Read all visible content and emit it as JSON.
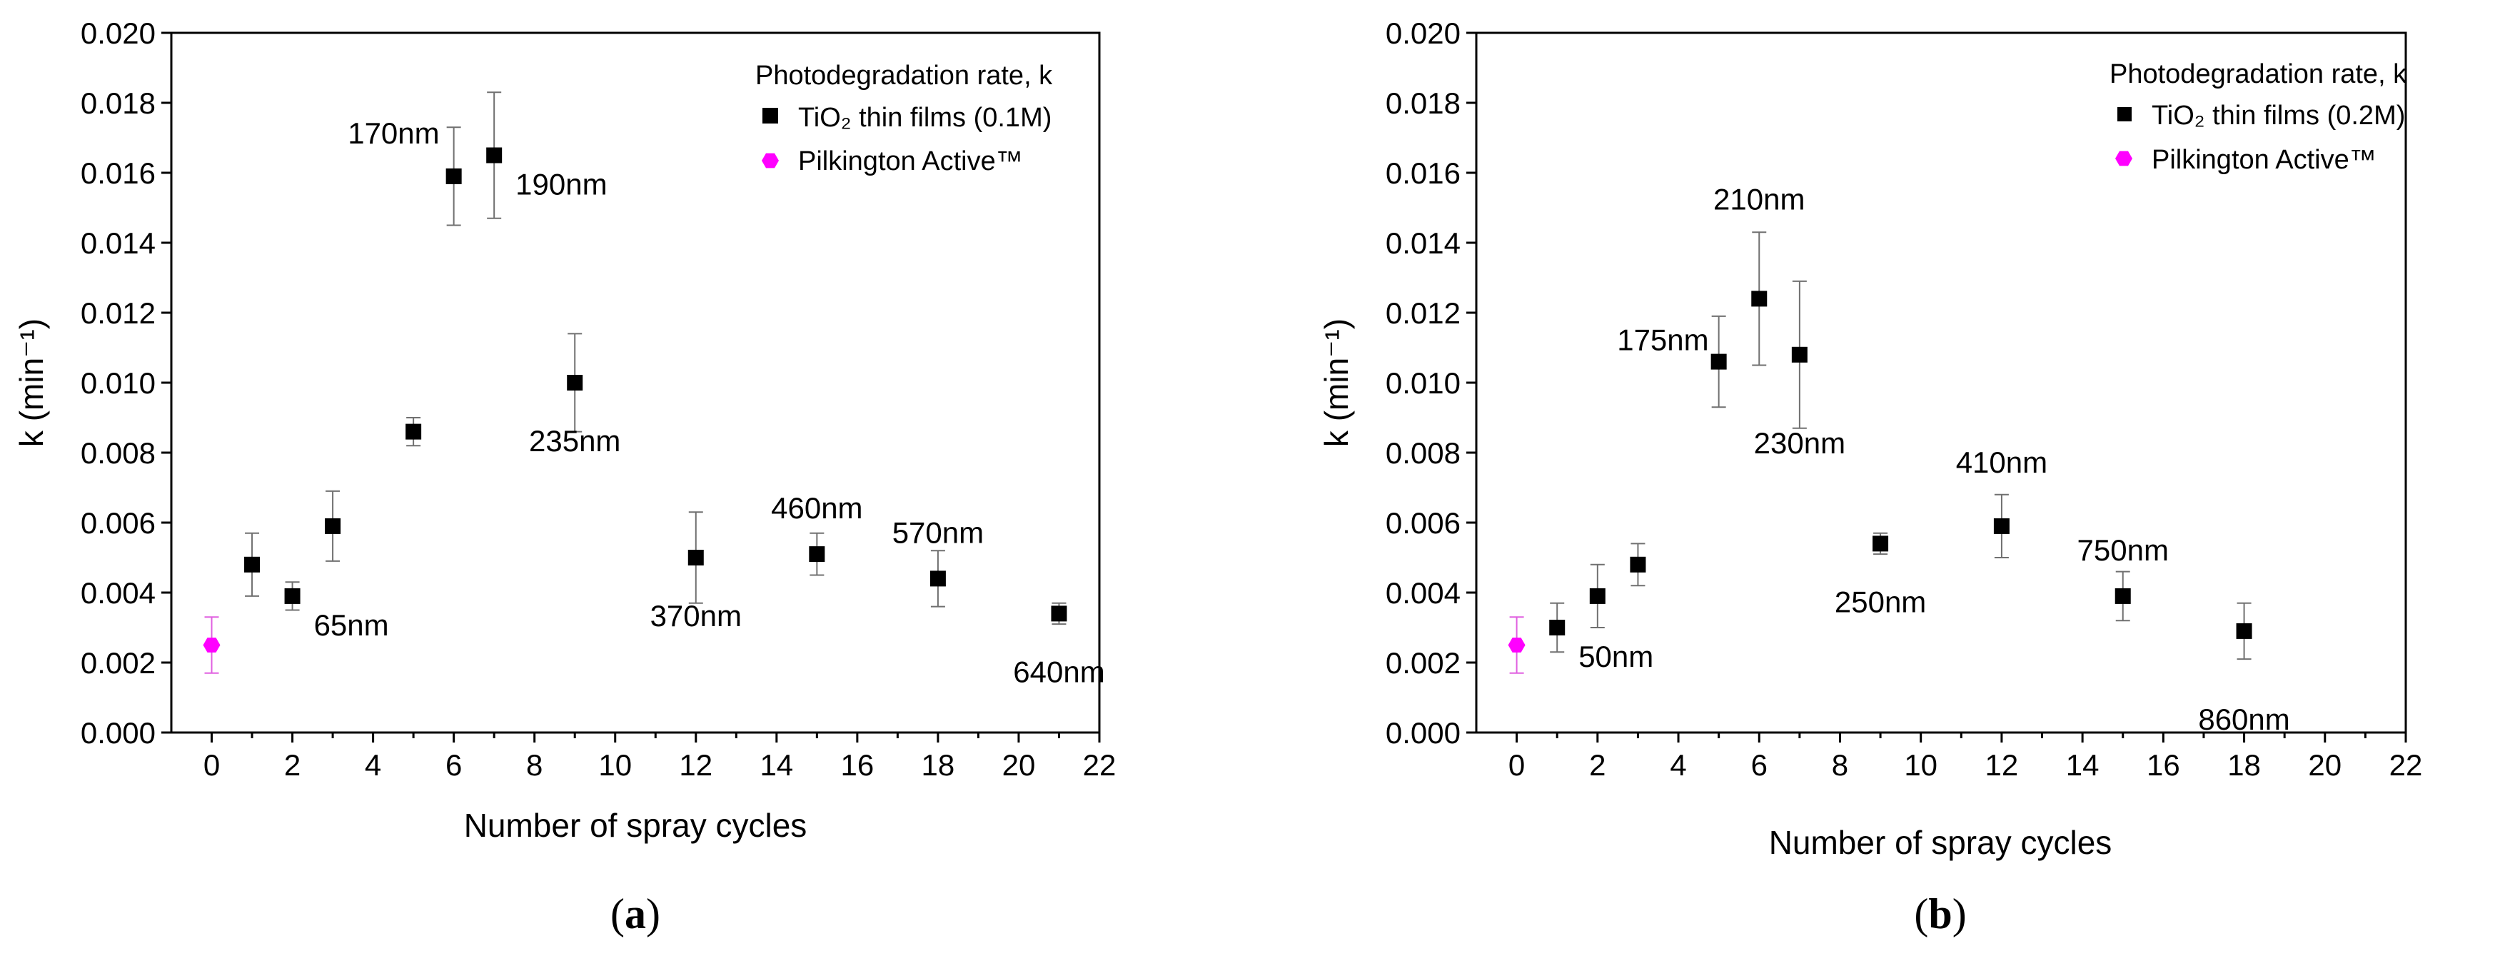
{
  "figure": {
    "panels": [
      {
        "caption_open": "(",
        "caption_letter": "a",
        "caption_close": ")",
        "legend_title": "Photodegradation rate, k",
        "legend_series_1": "TiO₂ thin films (0.1M)",
        "legend_series_2": "Pilkington Active™"
      },
      {
        "caption_open": "(",
        "caption_letter": "b",
        "caption_close": ")",
        "legend_title": "Photodegradation rate, k",
        "legend_series_1": "TiO₂ thin films (0.2M)",
        "legend_series_2": "Pilkington Active™"
      }
    ]
  },
  "chart_data": [
    {
      "type": "scatter",
      "xlabel": "Number of spray cycles",
      "ylabel": "k (min⁻¹)",
      "xlim": [
        -1,
        22
      ],
      "ylim": [
        0,
        0.02
      ],
      "x_ticks": [
        "0",
        "2",
        "4",
        "6",
        "8",
        "10",
        "12",
        "14",
        "16",
        "18",
        "20",
        "22"
      ],
      "y_ticks": [
        "0.000",
        "0.002",
        "0.004",
        "0.006",
        "0.008",
        "0.010",
        "0.012",
        "0.014",
        "0.016",
        "0.018",
        "0.020"
      ],
      "grid": false,
      "legend_position": "top-right",
      "series": [
        {
          "name": "TiO₂ thin films (0.1M)",
          "marker": "square",
          "color": "#000000",
          "points": [
            {
              "x": 1,
              "y": 0.0048,
              "err": 0.0009
            },
            {
              "x": 2,
              "y": 0.0039,
              "err": 0.0004
            },
            {
              "x": 3,
              "y": 0.0059,
              "err": 0.001
            },
            {
              "x": 5,
              "y": 0.0086,
              "err": 0.0004
            },
            {
              "x": 6,
              "y": 0.0159,
              "err": 0.0014
            },
            {
              "x": 7,
              "y": 0.0165,
              "err": 0.0018
            },
            {
              "x": 9,
              "y": 0.01,
              "err": 0.0014
            },
            {
              "x": 12,
              "y": 0.005,
              "err": 0.0013
            },
            {
              "x": 15,
              "y": 0.0051,
              "err": 0.0006
            },
            {
              "x": 18,
              "y": 0.0044,
              "err": 0.0008
            },
            {
              "x": 21,
              "y": 0.0034,
              "err": 0.0003
            }
          ]
        },
        {
          "name": "Pilkington Active™",
          "marker": "hexagon",
          "color": "#ff00ff",
          "points": [
            {
              "x": 0,
              "y": 0.0025,
              "err": 0.0008
            }
          ]
        }
      ],
      "annotations": [
        {
          "text": "65nm",
          "x": 2,
          "y": 0.0039,
          "pos": "below-right"
        },
        {
          "text": "170nm",
          "x": 6,
          "y": 0.0159,
          "pos": "above-left"
        },
        {
          "text": "190nm",
          "x": 7,
          "y": 0.0165,
          "pos": "below-right"
        },
        {
          "text": "235nm",
          "x": 9,
          "y": 0.01,
          "pos": "below"
        },
        {
          "text": "370nm",
          "x": 12,
          "y": 0.005,
          "pos": "below"
        },
        {
          "text": "460nm",
          "x": 15,
          "y": 0.0051,
          "pos": "above"
        },
        {
          "text": "570nm",
          "x": 18,
          "y": 0.0044,
          "pos": "above"
        },
        {
          "text": "640nm",
          "x": 21,
          "y": 0.0034,
          "pos": "below"
        }
      ]
    },
    {
      "type": "scatter",
      "xlabel": "Number of spray cycles",
      "ylabel": "k (min⁻¹)",
      "xlim": [
        -1,
        22
      ],
      "ylim": [
        0,
        0.02
      ],
      "x_ticks": [
        "0",
        "2",
        "4",
        "6",
        "8",
        "10",
        "12",
        "14",
        "16",
        "18",
        "20",
        "22"
      ],
      "y_ticks": [
        "0.000",
        "0.002",
        "0.004",
        "0.006",
        "0.008",
        "0.010",
        "0.012",
        "0.014",
        "0.016",
        "0.018",
        "0.020"
      ],
      "grid": false,
      "legend_position": "top-right",
      "series": [
        {
          "name": "TiO₂ thin films (0.2M)",
          "marker": "square",
          "color": "#000000",
          "points": [
            {
              "x": 1,
              "y": 0.003,
              "err": 0.0007
            },
            {
              "x": 2,
              "y": 0.0039,
              "err": 0.0009
            },
            {
              "x": 3,
              "y": 0.0048,
              "err": 0.0006
            },
            {
              "x": 5,
              "y": 0.0106,
              "err": 0.0013
            },
            {
              "x": 6,
              "y": 0.0124,
              "err": 0.0019
            },
            {
              "x": 7,
              "y": 0.0108,
              "err": 0.0021
            },
            {
              "x": 9,
              "y": 0.0054,
              "err": 0.0003
            },
            {
              "x": 12,
              "y": 0.0059,
              "err": 0.0009
            },
            {
              "x": 15,
              "y": 0.0039,
              "err": 0.0007
            },
            {
              "x": 18,
              "y": 0.0029,
              "err": 0.0008
            }
          ]
        },
        {
          "name": "Pilkington Active™",
          "marker": "hexagon",
          "color": "#ff00ff",
          "points": [
            {
              "x": 0,
              "y": 0.0025,
              "err": 0.0008
            }
          ]
        }
      ],
      "annotations": [
        {
          "text": "50nm",
          "x": 1,
          "y": 0.003,
          "pos": "below-right"
        },
        {
          "text": "175nm",
          "x": 5,
          "y": 0.0106,
          "pos": "left-above"
        },
        {
          "text": "210nm",
          "x": 6,
          "y": 0.0124,
          "pos": "top"
        },
        {
          "text": "230nm",
          "x": 7,
          "y": 0.0108,
          "pos": "below-bottom"
        },
        {
          "text": "250nm",
          "x": 9,
          "y": 0.0054,
          "pos": "below"
        },
        {
          "text": "410nm",
          "x": 12,
          "y": 0.0059,
          "pos": "above-top"
        },
        {
          "text": "750nm",
          "x": 15,
          "y": 0.0039,
          "pos": "above"
        },
        {
          "text": "860nm",
          "x": 18,
          "y": 0.0029,
          "pos": "below-bottom"
        }
      ]
    }
  ]
}
